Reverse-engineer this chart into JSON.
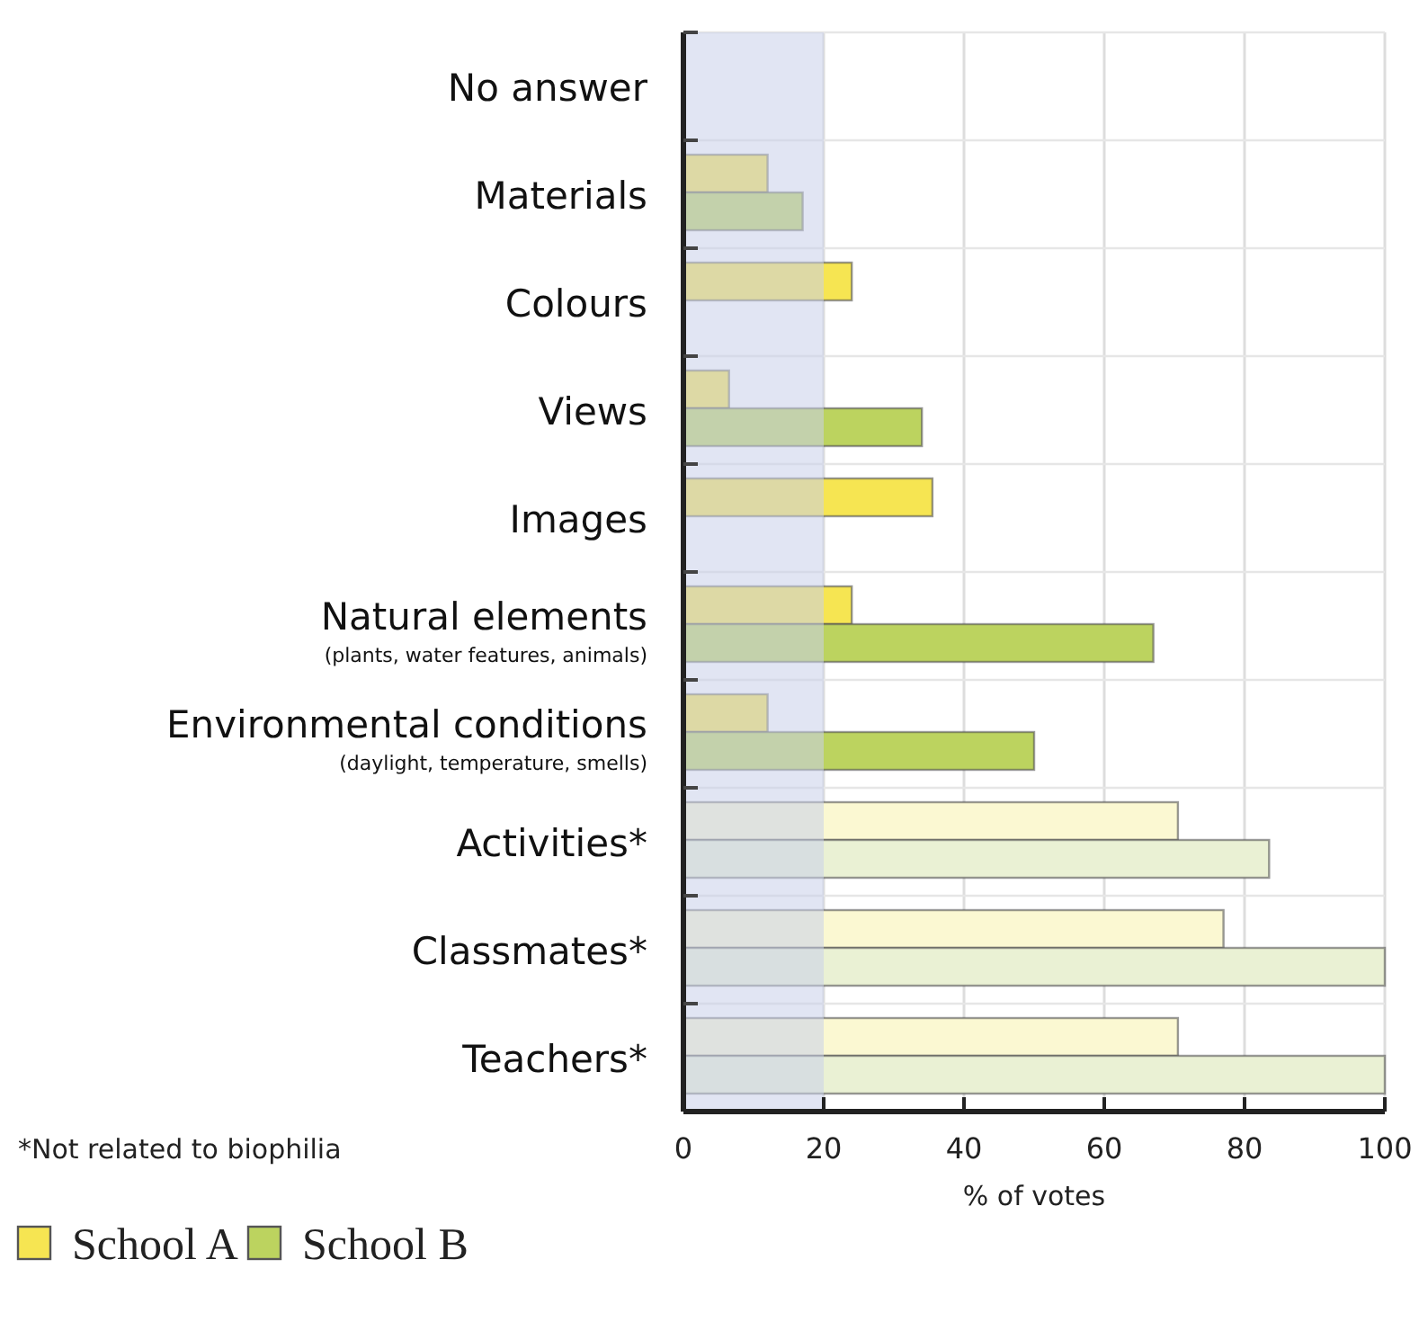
{
  "chart_data": {
    "type": "bar",
    "orientation": "horizontal",
    "categories": [
      "No answer",
      "Materials",
      "Colours",
      "Views",
      "Images",
      "Natural elements\n(plants, water features, animals)",
      "Environmental conditions\n(daylight, temperature, smells)",
      "Activities*",
      "Classmates*",
      "Teachers*"
    ],
    "series": [
      {
        "name": "School A",
        "color": "#f6e552",
        "colors": [
          null,
          "#f6e552",
          "#f6e552",
          "#f6e552",
          "#f6e552",
          "#f6e552",
          "#f6e552",
          "#fbf8d2",
          "#fbf8d2",
          "#fbf8d2"
        ],
        "values": [
          null,
          12,
          24,
          6.5,
          35.5,
          24,
          12,
          70.5,
          77,
          70.5
        ]
      },
      {
        "name": "School B",
        "color": "#bcd35f",
        "colors": [
          null,
          "#bcd35f",
          null,
          "#bcd35f",
          null,
          "#bcd35f",
          "#bcd35f",
          "#eaf1d4",
          "#eaf1d4",
          "#eaf1d4"
        ],
        "values": [
          null,
          17,
          null,
          34,
          null,
          67,
          50,
          83.5,
          100,
          100
        ]
      }
    ],
    "xlabel": "% of votes",
    "xlim": [
      0,
      100
    ],
    "xticks": [
      0,
      20,
      40,
      60,
      80,
      100
    ],
    "grid": true,
    "legend": "bottom",
    "bands": [
      {
        "axis": "x",
        "from": 0,
        "to": 20,
        "color": "#c9d0ea"
      }
    ],
    "annotations": [
      "*Not related to biophilia"
    ]
  }
}
